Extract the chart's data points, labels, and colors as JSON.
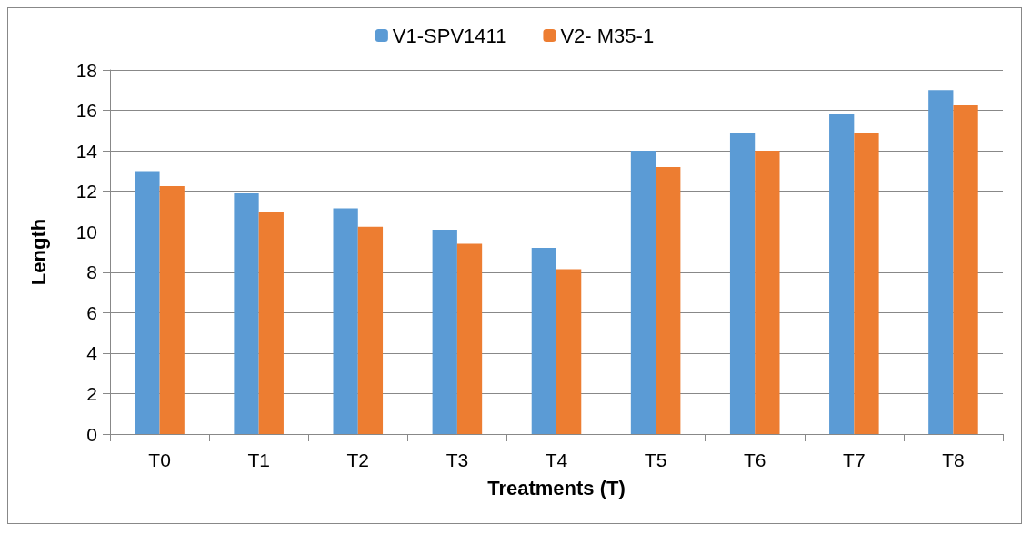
{
  "chart_data": {
    "type": "bar",
    "xlabel": "Treatments (T)",
    "ylabel": "Length",
    "categories": [
      "T0",
      "T1",
      "T2",
      "T3",
      "T4",
      "T5",
      "T6",
      "T7",
      "T8"
    ],
    "series": [
      {
        "name": "V1-SPV1411",
        "color": "#5b9bd5",
        "values": [
          13.0,
          11.9,
          11.15,
          10.1,
          9.2,
          14.0,
          14.9,
          15.8,
          17.0
        ]
      },
      {
        "name": "V2- M35-1",
        "color": "#ed7d31",
        "values": [
          12.25,
          11.0,
          10.25,
          9.4,
          8.15,
          13.2,
          14.0,
          14.9,
          16.25
        ]
      }
    ],
    "ylim": [
      0,
      18
    ],
    "yticks": [
      0,
      2,
      4,
      6,
      8,
      10,
      12,
      14,
      16,
      18
    ],
    "grid": "y",
    "legend": "top"
  }
}
